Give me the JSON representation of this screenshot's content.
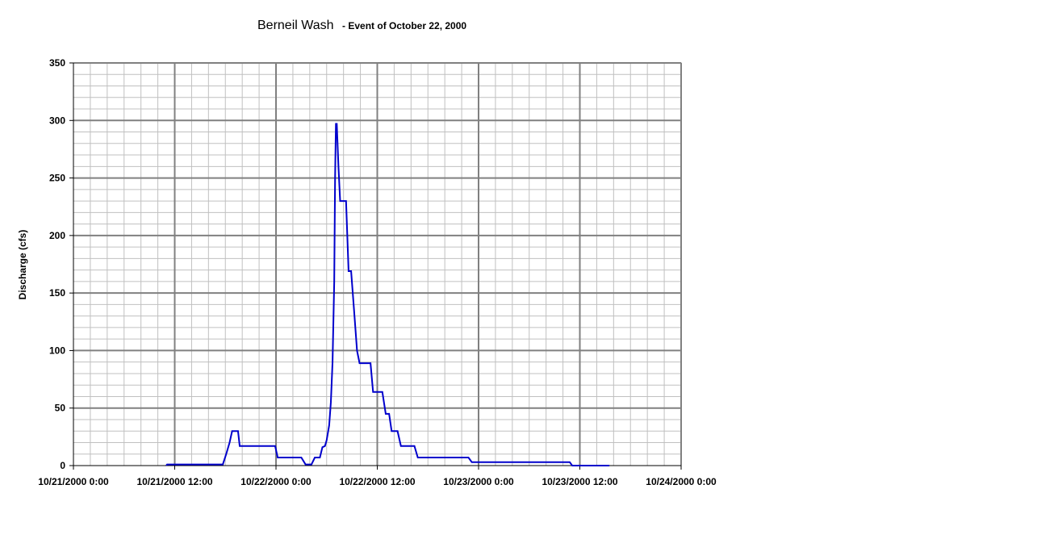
{
  "chart_data": {
    "type": "line",
    "title": "Berneil Wash",
    "subtitle": "- Event of October 22, 2000",
    "xlabel": "",
    "ylabel": "Discharge (cfs)",
    "ylim": [
      0,
      350
    ],
    "y_ticks": [
      0,
      50,
      100,
      150,
      200,
      250,
      300,
      350
    ],
    "xlim_hours": [
      0,
      72
    ],
    "x_ticks": [
      {
        "hour": 0,
        "label": "10/21/2000 0:00"
      },
      {
        "hour": 12,
        "label": "10/21/2000 12:00"
      },
      {
        "hour": 24,
        "label": "10/22/2000 0:00"
      },
      {
        "hour": 36,
        "label": "10/22/2000 12:00"
      },
      {
        "hour": 48,
        "label": "10/23/2000 0:00"
      },
      {
        "hour": 60,
        "label": "10/23/2000 12:00"
      },
      {
        "hour": 72,
        "label": "10/24/2000 0:00"
      }
    ],
    "grid": true,
    "minor_grid": true,
    "legend": "none",
    "colors": {
      "line": "#0000cc",
      "grid_major": "#808080",
      "grid_minor": "#c0c0c0",
      "axis": "#000000"
    },
    "series": [
      {
        "points": [
          [
            11.0,
            0
          ],
          [
            11.1,
            1
          ],
          [
            17.7,
            1
          ],
          [
            18.1,
            10
          ],
          [
            18.5,
            20
          ],
          [
            18.8,
            30
          ],
          [
            19.5,
            30
          ],
          [
            19.7,
            17
          ],
          [
            23.5,
            17
          ],
          [
            23.9,
            17
          ],
          [
            24.2,
            7
          ],
          [
            27.0,
            7
          ],
          [
            27.5,
            1
          ],
          [
            28.2,
            1
          ],
          [
            28.6,
            7
          ],
          [
            29.2,
            7
          ],
          [
            29.5,
            16
          ],
          [
            29.8,
            17
          ],
          [
            30.0,
            22
          ],
          [
            30.3,
            35
          ],
          [
            30.5,
            55
          ],
          [
            30.7,
            90
          ],
          [
            30.9,
            160
          ],
          [
            31.0,
            250
          ],
          [
            31.1,
            297
          ],
          [
            31.2,
            297
          ],
          [
            31.4,
            260
          ],
          [
            31.6,
            230
          ],
          [
            32.3,
            230
          ],
          [
            32.6,
            169
          ],
          [
            32.9,
            169
          ],
          [
            33.3,
            130
          ],
          [
            33.6,
            100
          ],
          [
            33.9,
            89
          ],
          [
            35.2,
            89
          ],
          [
            35.5,
            64
          ],
          [
            36.6,
            64
          ],
          [
            37.0,
            45
          ],
          [
            37.4,
            45
          ],
          [
            37.7,
            30
          ],
          [
            38.4,
            30
          ],
          [
            38.8,
            17
          ],
          [
            40.4,
            17
          ],
          [
            40.8,
            7
          ],
          [
            46.8,
            7
          ],
          [
            47.2,
            3
          ],
          [
            58.8,
            3
          ],
          [
            59.1,
            0
          ],
          [
            63.5,
            0
          ]
        ]
      }
    ]
  }
}
